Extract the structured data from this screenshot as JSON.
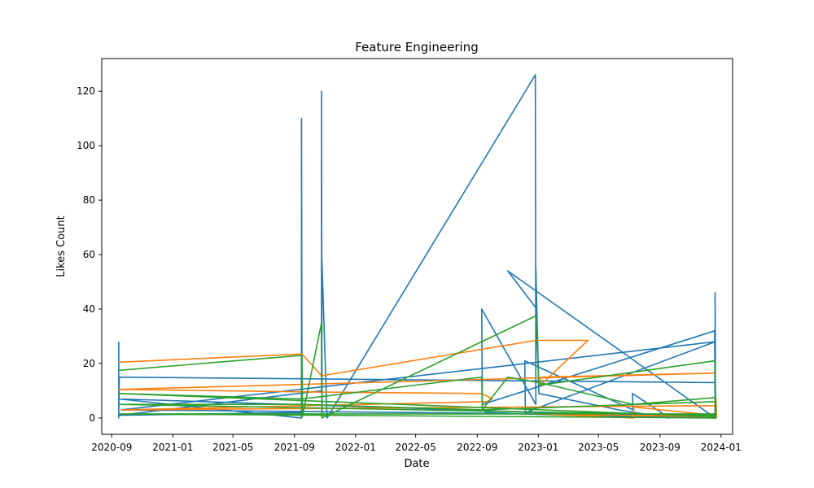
{
  "chart_data": {
    "type": "line",
    "title": "Feature Engineering",
    "xlabel": "Date",
    "ylabel": "Likes Count",
    "x_axis_type": "date",
    "xlim": [
      "2020-08-12",
      "2024-01-24"
    ],
    "ylim": [
      -6,
      132
    ],
    "x_ticks": [
      "2020-09",
      "2021-01",
      "2021-05",
      "2021-09",
      "2022-01",
      "2022-05",
      "2022-09",
      "2023-01",
      "2023-05",
      "2023-09",
      "2024-01"
    ],
    "y_ticks": [
      0,
      20,
      40,
      60,
      80,
      100,
      120
    ],
    "grid": false,
    "legend": "none",
    "series": [
      {
        "color": "#1f77b4",
        "points": [
          [
            "2020-09-15",
            28
          ],
          [
            "2020-09-15",
            0
          ],
          [
            "2020-09-16",
            15
          ],
          [
            "2023-12-20",
            13
          ],
          [
            "2023-12-20",
            46
          ],
          [
            "2023-12-21",
            0
          ],
          [
            "2020-09-15",
            7
          ],
          [
            "2021-09-15",
            0
          ],
          [
            "2021-09-15",
            110
          ],
          [
            "2021-09-16",
            2
          ],
          [
            "2020-09-17",
            1
          ],
          [
            "2021-10-25",
            10
          ],
          [
            "2021-10-25",
            120
          ],
          [
            "2021-10-26",
            0
          ],
          [
            "2021-10-25",
            62
          ],
          [
            "2021-11-05",
            0
          ],
          [
            "2022-12-26",
            126
          ],
          [
            "2022-12-27",
            5
          ],
          [
            "2022-09-10",
            40
          ],
          [
            "2022-09-11",
            5
          ],
          [
            "2023-12-19",
            32
          ],
          [
            "2023-12-20",
            0
          ],
          [
            "2022-11-01",
            54
          ],
          [
            "2022-12-29",
            40
          ],
          [
            "2022-12-27",
            55
          ],
          [
            "2023-01-02",
            9
          ],
          [
            "2023-06-10",
            3
          ],
          [
            "2023-09-20",
            0
          ],
          [
            "2023-07-08",
            9
          ],
          [
            "2023-07-09",
            3
          ],
          [
            "2022-12-05",
            21
          ],
          [
            "2022-12-06",
            2
          ],
          [
            "2023-12-20",
            28
          ],
          [
            "2020-09-20",
            3
          ],
          [
            "2023-12-22",
            1
          ],
          [
            "2023-12-20",
            0
          ],
          [
            "2023-03-01",
            1
          ],
          [
            "2022-09-15",
            2
          ]
        ]
      },
      {
        "color": "#ff7f0e",
        "points": [
          [
            "2020-09-15",
            20.5
          ],
          [
            "2021-09-16",
            23.5
          ],
          [
            "2021-10-25",
            15.5
          ],
          [
            "2022-12-27",
            28.5
          ],
          [
            "2023-04-10",
            28.5
          ],
          [
            "2023-01-05",
            12
          ],
          [
            "2023-01-06",
            15
          ],
          [
            "2023-12-20",
            16.5
          ],
          [
            "2020-09-15",
            10.5
          ],
          [
            "2021-10-25",
            9.5
          ],
          [
            "2022-09-10",
            9
          ],
          [
            "2022-10-01",
            7
          ],
          [
            "2022-09-20",
            6
          ],
          [
            "2020-09-20",
            3
          ],
          [
            "2023-12-21",
            4.5
          ],
          [
            "2023-12-22",
            7
          ],
          [
            "2023-12-23",
            0.5
          ],
          [
            "2022-12-28",
            1.5
          ],
          [
            "2023-07-10",
            0
          ],
          [
            "2023-07-11",
            4
          ],
          [
            "2023-12-20",
            1
          ]
        ]
      },
      {
        "color": "#2ca02c",
        "points": [
          [
            "2020-09-15",
            17.5
          ],
          [
            "2021-09-16",
            23
          ],
          [
            "2021-09-17",
            0.5
          ],
          [
            "2021-10-25",
            35
          ],
          [
            "2021-10-26",
            0
          ],
          [
            "2022-12-27",
            37.5
          ],
          [
            "2023-01-02",
            12
          ],
          [
            "2023-12-20",
            21
          ],
          [
            "2023-12-21",
            0.5
          ],
          [
            "2020-09-15",
            9
          ],
          [
            "2021-09-16",
            7
          ],
          [
            "2022-09-10",
            15
          ],
          [
            "2022-09-11",
            3
          ],
          [
            "2022-11-01",
            15
          ],
          [
            "2023-01-03",
            13
          ],
          [
            "2023-07-09",
            5
          ],
          [
            "2023-12-20",
            7.5
          ],
          [
            "2023-12-21",
            1
          ],
          [
            "2020-09-16",
            5
          ],
          [
            "2021-09-16",
            5
          ],
          [
            "2022-09-11",
            3
          ],
          [
            "2023-12-21",
            6
          ],
          [
            "2023-12-22",
            0
          ],
          [
            "2020-09-16",
            1.5
          ],
          [
            "2023-12-20",
            1.5
          ]
        ]
      }
    ]
  }
}
